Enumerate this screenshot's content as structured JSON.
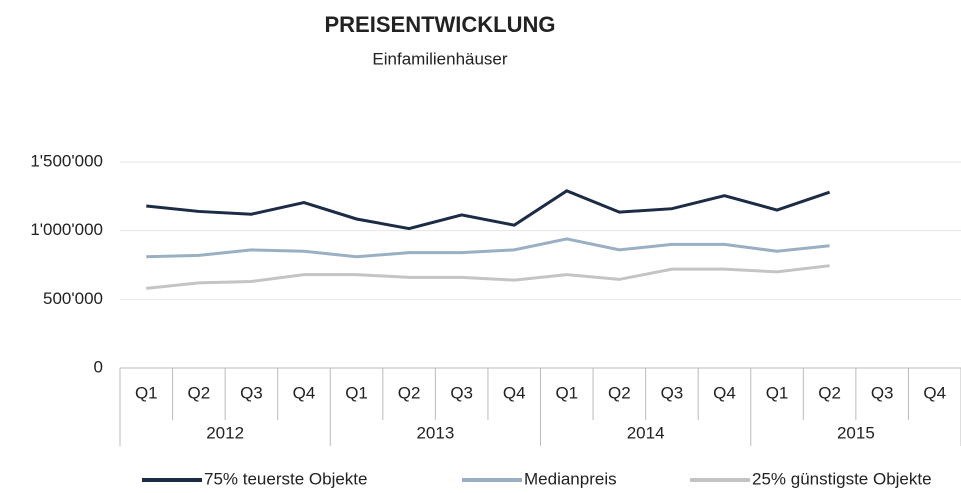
{
  "chart_data": {
    "type": "line",
    "title": "PREISENTWICKLUNG",
    "subtitle": "Einfamilienhäuser",
    "categories": [
      "Q1",
      "Q2",
      "Q3",
      "Q4",
      "Q1",
      "Q2",
      "Q3",
      "Q4",
      "Q1",
      "Q2",
      "Q3",
      "Q4",
      "Q1",
      "Q2",
      "Q3",
      "Q4"
    ],
    "groups": [
      "2012",
      "2013",
      "2014",
      "2015"
    ],
    "series": [
      {
        "name": "75% teuerste Objekte",
        "color": "#1c2b46",
        "values": [
          1180000,
          1140000,
          1120000,
          1205000,
          1085000,
          1015000,
          1115000,
          1040000,
          1290000,
          1135000,
          1160000,
          1255000,
          1150000,
          1280000,
          null,
          null
        ]
      },
      {
        "name": "Medianpreis",
        "color": "#9aafc4",
        "values": [
          810000,
          820000,
          860000,
          850000,
          810000,
          840000,
          840000,
          860000,
          940000,
          860000,
          900000,
          900000,
          850000,
          890000,
          null,
          null
        ]
      },
      {
        "name": "25% günstigste Objekte",
        "color": "#c4c4c4",
        "values": [
          580000,
          620000,
          630000,
          680000,
          680000,
          660000,
          660000,
          640000,
          680000,
          645000,
          720000,
          720000,
          700000,
          745000,
          null,
          null
        ]
      }
    ],
    "ylim": [
      0,
      1500000
    ],
    "yticks": [
      0,
      {
        "value": 500000,
        "label": "500'000"
      },
      {
        "value": 1000000,
        "label": "1'000'000"
      },
      {
        "value": 1500000,
        "label": "1'500'000"
      }
    ],
    "grid": true,
    "legend": "bottom"
  }
}
